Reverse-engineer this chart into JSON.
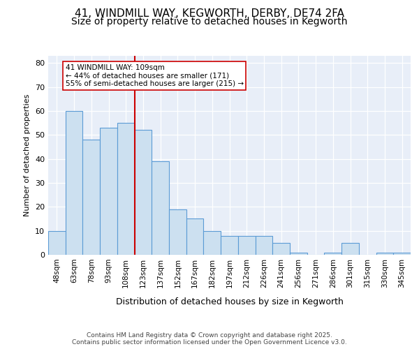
{
  "title_line1": "41, WINDMILL WAY, KEGWORTH, DERBY, DE74 2FA",
  "title_line2": "Size of property relative to detached houses in Kegworth",
  "xlabel": "Distribution of detached houses by size in Kegworth",
  "ylabel": "Number of detached properties",
  "categories": [
    "48sqm",
    "63sqm",
    "78sqm",
    "93sqm",
    "108sqm",
    "123sqm",
    "137sqm",
    "152sqm",
    "167sqm",
    "182sqm",
    "197sqm",
    "212sqm",
    "226sqm",
    "241sqm",
    "256sqm",
    "271sqm",
    "286sqm",
    "301sqm",
    "315sqm",
    "330sqm",
    "345sqm"
  ],
  "values": [
    10,
    60,
    48,
    53,
    55,
    52,
    39,
    19,
    15,
    10,
    8,
    8,
    8,
    5,
    1,
    0,
    1,
    5,
    0,
    1,
    1
  ],
  "bar_color": "#cce0f0",
  "bar_edge_color": "#5b9bd5",
  "vline_index": 4,
  "vline_color": "#cc0000",
  "annotation_text": "41 WINDMILL WAY: 109sqm\n← 44% of detached houses are smaller (171)\n55% of semi-detached houses are larger (215) →",
  "ylim": [
    0,
    83
  ],
  "yticks": [
    0,
    10,
    20,
    30,
    40,
    50,
    60,
    70,
    80
  ],
  "background_color": "#e8eef8",
  "grid_color": "#ffffff",
  "footer_text": "Contains HM Land Registry data © Crown copyright and database right 2025.\nContains public sector information licensed under the Open Government Licence v3.0.",
  "title_fontsize": 11,
  "subtitle_fontsize": 10,
  "footer_fontsize": 6.5
}
